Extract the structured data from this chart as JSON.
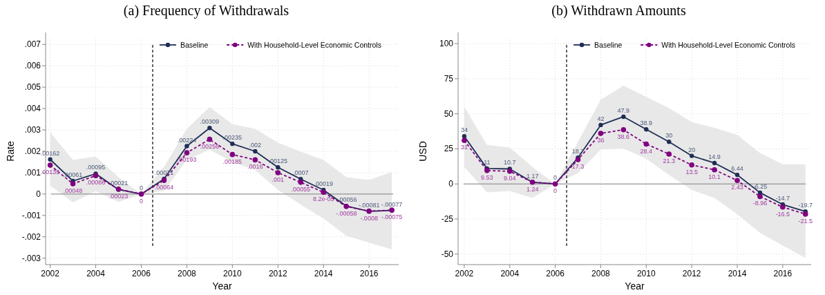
{
  "chart_data": [
    {
      "type": "line",
      "title": "(a) Frequency of Withdrawals",
      "xlabel": "Year",
      "ylabel": "Rate",
      "x": [
        2002,
        2003,
        2004,
        2005,
        2006,
        2007,
        2008,
        2009,
        2010,
        2011,
        2012,
        2013,
        2014,
        2015,
        2016,
        2017
      ],
      "series": [
        {
          "name": "Baseline",
          "color": "#1f2d55",
          "line_style": "solid",
          "values": [
            0.00162,
            0.00061,
            0.00095,
            0.00021,
            0,
            0.00071,
            0.00224,
            0.00309,
            0.00235,
            0.002,
            0.00125,
            0.0007,
            0.00019,
            -0.00056,
            -0.00081,
            -0.00077
          ],
          "value_labels": [
            ".00162",
            ".00061",
            ".00095",
            ".00021",
            "0",
            ".00071",
            ".00224",
            ".00309",
            ".00235",
            ".002",
            ".00125",
            ".0007",
            ".00019",
            "-.00056",
            "-.00081",
            "-.00077"
          ],
          "lower": [
            0.00039,
            -0.00039,
            0.00013,
            -0.00037,
            0,
            0.00015,
            0.0016,
            0.00208,
            0.00149,
            0.00112,
            0.0002,
            -0.0005,
            -0.00114,
            -0.00195,
            -0.00227,
            -0.00259
          ],
          "upper": [
            0.00288,
            0.0016,
            0.00176,
            0.00079,
            0,
            0.00128,
            0.00305,
            0.00407,
            0.00327,
            0.00305,
            0.0024,
            0.00198,
            0.0016,
            0.00079,
            0.00066,
            0.00103
          ]
        },
        {
          "name": "With Household-Level Economic Controls",
          "color": "#800080",
          "line_style": "dashed",
          "values": [
            0.00135,
            0.00048,
            0.00086,
            0.00023,
            0,
            0.00064,
            0.00193,
            0.00256,
            0.00185,
            0.0016,
            0.001,
            0.00055,
            8.2e-05,
            -0.00058,
            -0.0008,
            -0.00075
          ],
          "value_labels": [
            ".00135",
            ".00048",
            ".00086",
            ".00023",
            "0",
            ".00064",
            ".00193",
            ".00256",
            ".00185",
            ".0016",
            ".001",
            ".00055",
            "8.2e-05",
            "-.00058",
            "-.0008",
            "-.00075"
          ]
        }
      ],
      "xlim": [
        2001.8,
        2017.3
      ],
      "xticks": [
        2002,
        2004,
        2006,
        2008,
        2010,
        2012,
        2014,
        2016
      ],
      "ylim": [
        -0.0033,
        0.0073
      ],
      "yticks": [
        {
          "value": -0.003,
          "label": "-.003"
        },
        {
          "value": -0.002,
          "label": "-.002"
        },
        {
          "value": -0.001,
          "label": "-.001"
        },
        {
          "value": 0,
          "label": "0"
        },
        {
          "value": 0.001,
          "label": ".001"
        },
        {
          "value": 0.002,
          "label": ".002"
        },
        {
          "value": 0.003,
          "label": ".003"
        },
        {
          "value": 0.004,
          "label": ".004"
        },
        {
          "value": 0.005,
          "label": ".005"
        },
        {
          "value": 0.006,
          "label": ".006"
        },
        {
          "value": 0.007,
          "label": ".007"
        }
      ],
      "ref_lines": [
        {
          "axis": "y",
          "value": 0,
          "color": "#808080",
          "line_style": "solid"
        },
        {
          "axis": "x",
          "value": 2006.5,
          "color": "#000000",
          "line_style": "dashed"
        }
      ],
      "grid": true,
      "legend": "top right",
      "marker": "circle"
    },
    {
      "type": "line",
      "title": "(b) Withdrawn Amounts",
      "xlabel": "Year",
      "ylabel": "USD",
      "x": [
        2002,
        2003,
        2004,
        2005,
        2006,
        2007,
        2008,
        2009,
        2010,
        2011,
        2012,
        2013,
        2014,
        2015,
        2016,
        2017
      ],
      "series": [
        {
          "name": "Baseline",
          "color": "#1f2d55",
          "line_style": "solid",
          "values": [
            34,
            11,
            10.7,
            1.17,
            0,
            18.7,
            42,
            47.9,
            38.9,
            30,
            20,
            14.9,
            6.44,
            -6.25,
            -14.7,
            -19.7
          ],
          "value_labels": [
            "34",
            "11",
            "10.7",
            "1.17",
            "0",
            "18.7",
            "42",
            "47.9",
            "38.9",
            "30",
            "20",
            "14.9",
            "6.44",
            "-6.25",
            "-14.7",
            "-19.7"
          ],
          "lower": [
            12,
            -6,
            -5,
            -10,
            0,
            7.7,
            24.5,
            25.3,
            18,
            6.4,
            -4.3,
            -10,
            -21.6,
            -34.8,
            -43.8,
            -52.8
          ],
          "upper": [
            55,
            27.8,
            26,
            12,
            0,
            30,
            60,
            70,
            62,
            54,
            44,
            40,
            35,
            22,
            14,
            14
          ]
        },
        {
          "name": "With Household-Level Economic Controls",
          "color": "#800080",
          "line_style": "dashed",
          "values": [
            31,
            9.53,
            9.04,
            1.24,
            0,
            17.3,
            36,
            38.6,
            28.4,
            21.3,
            13.5,
            10.1,
            2.43,
            -8.96,
            -16.5,
            -21.5
          ],
          "value_labels": [
            "31",
            "9.53",
            "9.04",
            "1.24",
            "0",
            "17.3",
            "36",
            "38.6",
            "28.4",
            "21.3",
            "13.5",
            "10.1",
            "2.43",
            "-8.96",
            "-16.5",
            "-21.5"
          ]
        }
      ],
      "xlim": [
        2001.73,
        2017.25
      ],
      "xticks": [
        2002,
        2004,
        2006,
        2008,
        2010,
        2012,
        2014,
        2016
      ],
      "ylim": [
        -57.5,
        104
      ],
      "yticks": [
        -50,
        -25,
        0,
        25,
        50,
        75,
        100
      ],
      "ref_lines": [
        {
          "axis": "y",
          "value": 0,
          "color": "#808080",
          "line_style": "solid"
        },
        {
          "axis": "x",
          "value": 2006.5,
          "color": "#000000",
          "line_style": "dashed"
        }
      ],
      "grid": true,
      "legend": "top right",
      "marker": "circle"
    }
  ]
}
